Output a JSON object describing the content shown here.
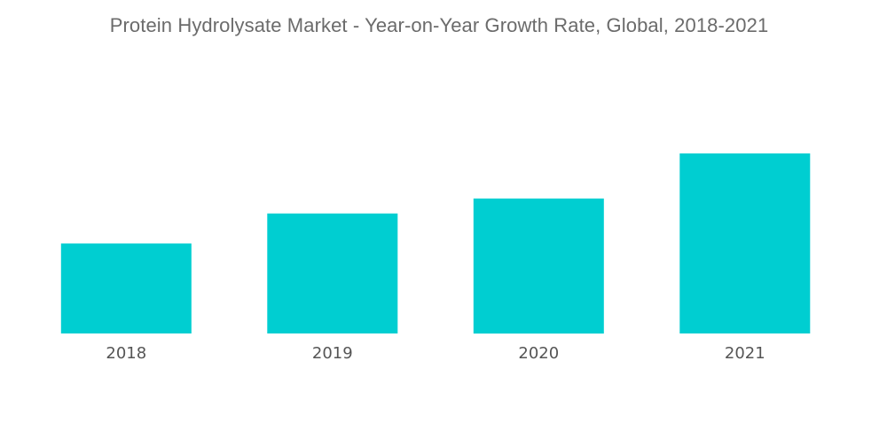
{
  "chart_data": {
    "type": "bar",
    "title": "Protein Hydrolysate Market - Year-on-Year Growth Rate, Global, 2018-2021",
    "categories": [
      "2018",
      "2019",
      "2020",
      "2021"
    ],
    "series": [
      {
        "values": [
          3.0,
          4.0,
          4.5,
          6.0
        ]
      }
    ],
    "xlabel": "",
    "ylabel": "",
    "ylim": [
      0,
      6.0
    ],
    "grid": false,
    "legend": "none",
    "colors": {
      "bar": "#00CED1",
      "title": "#6b6b6b",
      "tick_label": "#555555"
    }
  }
}
